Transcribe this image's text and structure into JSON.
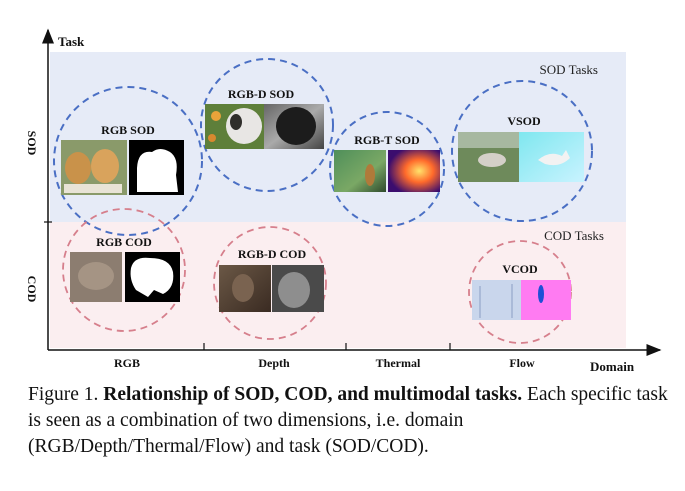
{
  "axes": {
    "y_title": "Task",
    "x_title": "Domain",
    "y_labels": [
      "SOD",
      "COD"
    ],
    "x_labels": [
      "RGB",
      "Depth",
      "Thermal",
      "Flow"
    ]
  },
  "bands": {
    "sod": {
      "label": "SOD Tasks",
      "color": "#e6ebf7"
    },
    "cod": {
      "label": "COD Tasks",
      "color": "#fbeef0"
    }
  },
  "colors": {
    "sod_circle": "#4a6fc4",
    "cod_circle": "#d67f8c"
  },
  "tasks": {
    "rgb_sod": "RGB SOD",
    "rgbd_sod": "RGB-D SOD",
    "rgbt_sod": "RGB-T SOD",
    "vsod": "VSOD",
    "rgb_cod": "RGB COD",
    "rgbd_cod": "RGB-D COD",
    "vcod": "VCOD"
  },
  "caption": {
    "label": "Figure 1.",
    "title": "Relationship of SOD, COD, and multimodal tasks.",
    "body": "Each specific task is seen as a combination of two dimensions, i.e. domain (RGB/Depth/Thermal/Flow) and task (SOD/COD)."
  }
}
